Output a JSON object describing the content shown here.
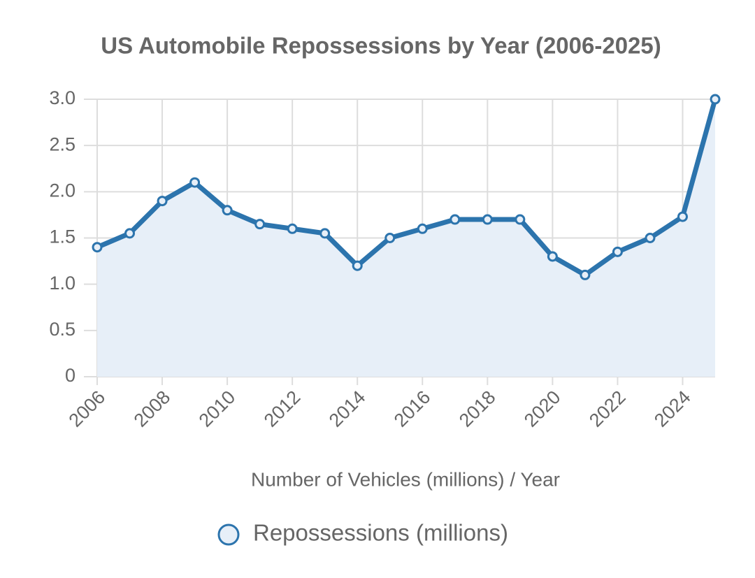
{
  "chart_data": {
    "type": "line",
    "title": "US Automobile Repossessions by Year (2006-2025)",
    "x_label": "Number of Vehicles (millions) / Year",
    "x": [
      2006,
      2007,
      2008,
      2009,
      2010,
      2011,
      2012,
      2013,
      2014,
      2015,
      2016,
      2017,
      2018,
      2019,
      2020,
      2021,
      2022,
      2023,
      2024,
      2025
    ],
    "series": [
      {
        "name": "Repossessions (millions)",
        "color": "#2c74ad",
        "area_color": "#e7eff8",
        "values": [
          1.4,
          1.55,
          1.9,
          2.1,
          1.8,
          1.65,
          1.6,
          1.55,
          1.2,
          1.5,
          1.6,
          1.7,
          1.7,
          1.7,
          1.3,
          1.1,
          1.35,
          1.5,
          1.73,
          3.0
        ]
      }
    ],
    "xlim": [
      2006,
      2025
    ],
    "xticks": [
      2006,
      2008,
      2010,
      2012,
      2014,
      2016,
      2018,
      2020,
      2022,
      2024
    ],
    "ylim": [
      0,
      3
    ],
    "yticks": [
      0,
      0.5,
      {
        "value": 1,
        "label": "1.0"
      },
      1.5,
      {
        "value": 2,
        "label": "2.0"
      },
      2.5,
      {
        "value": 3,
        "label": "3.0"
      }
    ],
    "grid": true,
    "legend": "bottom"
  }
}
